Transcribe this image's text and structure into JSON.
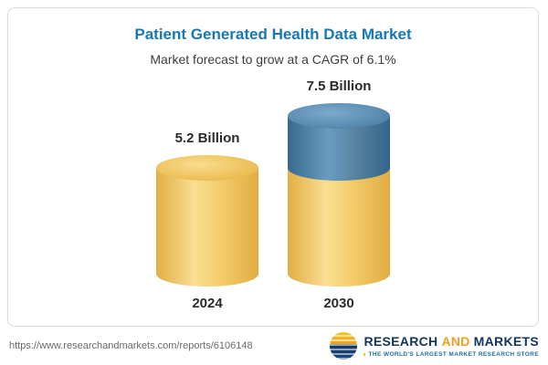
{
  "header": {
    "title": "Patient Generated Health Data Market",
    "subtitle": "Market forecast to grow at a CAGR of 6.1%"
  },
  "chart_data": {
    "type": "bar",
    "categories": [
      "2024",
      "2030"
    ],
    "values": [
      5.2,
      7.5
    ],
    "value_labels": [
      "5.2 Billion",
      "7.5 Billion"
    ],
    "title": "Patient Generated Health Data Market",
    "subtitle": "Market forecast to grow at a CAGR of 6.1%",
    "unit": "Billion",
    "cagr": "6.1%",
    "ylim": [
      0,
      8
    ],
    "grid": false,
    "legend": false,
    "colors": {
      "base_segment": "#f2cd68",
      "growth_segment": "#4a80a8"
    }
  },
  "footer": {
    "url": "https://www.researchandmarkets.com/reports/6106148",
    "logo": {
      "research": "RESEARCH",
      "and": "AND",
      "markets": "MARKETS",
      "tagline": "THE WORLD'S LARGEST MARKET RESEARCH STORE"
    }
  }
}
